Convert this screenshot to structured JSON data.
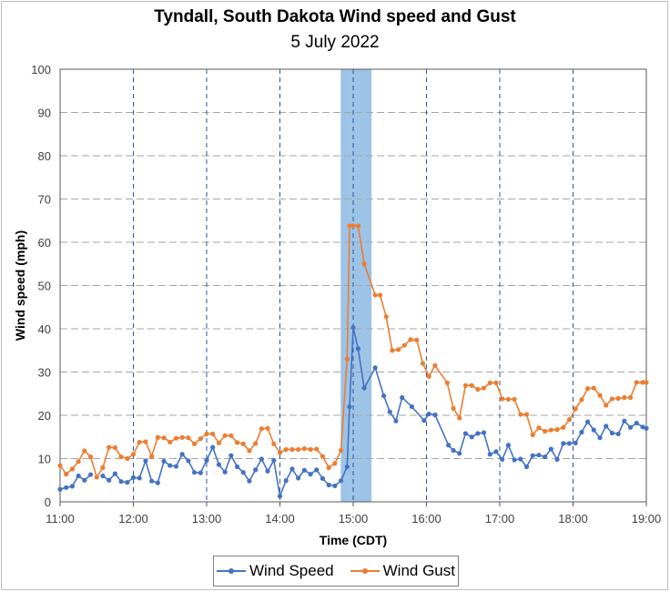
{
  "title": "Tyndall, South Dakota Wind speed and Gust",
  "subtitle": "5 July 2022",
  "colors": {
    "wind_speed": "#4472c4",
    "wind_gust": "#ed7d31",
    "highlight": "#9dc3e6",
    "grid": "#a6a6a6",
    "vgrid": "#2f5597"
  },
  "chart_data": {
    "type": "line",
    "xlabel": "Time (CDT)",
    "ylabel": "Wind speed (mph)",
    "ylim": [
      0,
      100
    ],
    "yticks": [
      "0",
      "10",
      "20",
      "30",
      "40",
      "50",
      "60",
      "70",
      "80",
      "90",
      "100"
    ],
    "xlim_hours": [
      11,
      19
    ],
    "xticks": [
      "11:00",
      "12:00",
      "13:00",
      "14:00",
      "15:00",
      "16:00",
      "17:00",
      "18:00",
      "19:00"
    ],
    "highlight_span_hours": [
      14.83,
      15.25
    ],
    "grid": true,
    "legend_position": "bottom",
    "series": [
      {
        "name": "Wind Speed",
        "x": [
          11.0,
          11.083,
          11.167,
          11.25,
          11.333,
          11.417,
          11.5,
          11.583,
          11.667,
          11.75,
          11.833,
          11.917,
          12.0,
          12.083,
          12.167,
          12.25,
          12.333,
          12.417,
          12.5,
          12.583,
          12.667,
          12.75,
          12.833,
          12.917,
          13.0,
          13.083,
          13.167,
          13.25,
          13.333,
          13.417,
          13.5,
          13.583,
          13.667,
          13.75,
          13.833,
          13.917,
          14.0,
          14.083,
          14.167,
          14.25,
          14.333,
          14.417,
          14.5,
          14.583,
          14.667,
          14.75,
          14.833,
          14.917,
          14.95,
          15.0,
          15.067,
          15.15,
          15.3,
          15.417,
          15.5,
          15.583,
          15.667,
          15.8,
          15.967,
          16.033,
          16.117,
          16.3,
          16.367,
          16.45,
          16.533,
          16.617,
          16.7,
          16.783,
          16.867,
          16.95,
          17.033,
          17.117,
          17.2,
          17.283,
          17.367,
          17.45,
          17.533,
          17.617,
          17.7,
          17.783,
          17.867,
          17.95,
          18.033,
          18.117,
          18.2,
          18.283,
          18.367,
          18.45,
          18.533,
          18.617,
          18.7,
          18.783,
          18.867,
          18.95,
          19.0
        ],
        "y": [
          2.9,
          3.3,
          3.6,
          6.0,
          5.0,
          6.3,
          null,
          6.0,
          5.0,
          6.5,
          4.7,
          4.5,
          5.6,
          5.5,
          9.5,
          4.8,
          4.4,
          9.4,
          8.4,
          8.2,
          11.0,
          9.5,
          6.8,
          6.7,
          9.6,
          12.6,
          8.6,
          6.9,
          10.7,
          8.1,
          6.8,
          4.8,
          7.4,
          9.9,
          7.1,
          9.6,
          1.3,
          4.9,
          7.6,
          5.5,
          7.3,
          6.4,
          7.4,
          5.4,
          3.9,
          3.7,
          4.9,
          8.1,
          22.0,
          40.3,
          35.4,
          26.3,
          31.0,
          24.5,
          20.8,
          18.7,
          24.1,
          22.0,
          18.8,
          20.3,
          20.1,
          13.1,
          11.9,
          11.2,
          15.8,
          15.0,
          15.8,
          16.0,
          11.0,
          11.6,
          9.8,
          13.1,
          9.7,
          9.9,
          8.1,
          10.7,
          10.8,
          10.4,
          12.2,
          9.8,
          13.5,
          13.5,
          13.6,
          16.1,
          18.5,
          16.6,
          14.8,
          17.5,
          15.9,
          15.7,
          18.7,
          17.2,
          18.2,
          17.3,
          17.0
        ]
      },
      {
        "name": "Wind Gust",
        "x": [
          11.0,
          11.083,
          11.167,
          11.25,
          11.333,
          11.417,
          11.5,
          11.583,
          11.667,
          11.75,
          11.833,
          11.917,
          12.0,
          12.083,
          12.167,
          12.25,
          12.333,
          12.417,
          12.5,
          12.583,
          12.667,
          12.75,
          12.833,
          12.917,
          13.0,
          13.083,
          13.167,
          13.25,
          13.333,
          13.417,
          13.5,
          13.583,
          13.667,
          13.75,
          13.833,
          13.917,
          14.0,
          14.083,
          14.167,
          14.25,
          14.333,
          14.417,
          14.5,
          14.583,
          14.667,
          14.75,
          14.833,
          14.917,
          14.95,
          15.0,
          15.067,
          15.15,
          15.3,
          15.367,
          15.45,
          15.533,
          15.617,
          15.7,
          15.783,
          15.867,
          15.95,
          16.033,
          16.117,
          16.283,
          16.367,
          16.45,
          16.533,
          16.617,
          16.7,
          16.783,
          16.867,
          16.95,
          17.033,
          17.117,
          17.2,
          17.283,
          17.367,
          17.45,
          17.533,
          17.617,
          17.7,
          17.783,
          17.867,
          17.95,
          18.033,
          18.117,
          18.2,
          18.283,
          18.367,
          18.45,
          18.533,
          18.617,
          18.7,
          18.783,
          18.867,
          18.95,
          19.0
        ],
        "y": [
          8.4,
          6.4,
          7.6,
          9.3,
          11.8,
          10.4,
          5.7,
          7.9,
          12.6,
          12.5,
          10.4,
          10.0,
          11.0,
          13.8,
          13.9,
          10.5,
          14.9,
          14.8,
          13.8,
          14.7,
          14.9,
          14.8,
          13.4,
          14.6,
          15.7,
          15.7,
          13.6,
          15.3,
          15.3,
          13.7,
          13.4,
          11.8,
          13.5,
          16.9,
          17.0,
          13.4,
          11.4,
          12.1,
          12.1,
          12.1,
          12.3,
          12.1,
          12.2,
          10.5,
          7.9,
          8.9,
          11.9,
          33.0,
          63.8,
          63.8,
          63.8,
          55.0,
          47.8,
          47.8,
          42.8,
          35.0,
          35.2,
          36.2,
          37.5,
          37.4,
          32.0,
          29.0,
          31.5,
          27.5,
          21.6,
          19.4,
          26.9,
          26.9,
          26.0,
          26.3,
          27.5,
          27.5,
          23.8,
          23.7,
          23.7,
          20.2,
          20.2,
          15.5,
          17.1,
          16.3,
          16.6,
          16.7,
          17.2,
          19.0,
          21.5,
          23.6,
          26.2,
          26.3,
          24.6,
          22.3,
          23.8,
          23.9,
          24.1,
          24.1,
          27.6,
          27.6,
          27.6
        ]
      }
    ]
  }
}
